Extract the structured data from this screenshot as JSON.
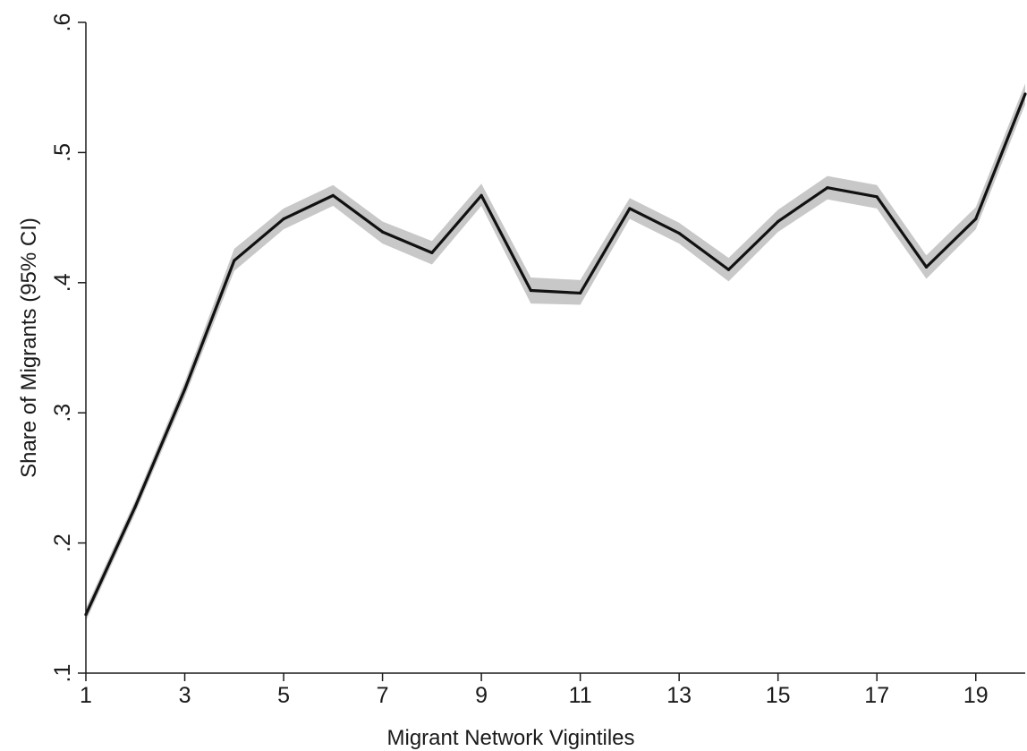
{
  "chart_data": {
    "type": "line",
    "title": "",
    "xlabel": "Migrant Network Vigintiles",
    "ylabel": "Share of Migrants (95% CI)",
    "xlim": [
      1,
      20
    ],
    "ylim": [
      0.1,
      0.6
    ],
    "x_ticks": [
      1,
      3,
      5,
      7,
      9,
      11,
      13,
      15,
      17,
      19
    ],
    "x_tick_labels": [
      "1",
      "3",
      "5",
      "7",
      "9",
      "11",
      "13",
      "15",
      "17",
      "19"
    ],
    "y_ticks": [
      0.1,
      0.2,
      0.3,
      0.4,
      0.5,
      0.6
    ],
    "y_tick_labels": [
      ".1",
      ".2",
      ".3",
      ".4",
      ".5",
      ".6"
    ],
    "grid": false,
    "legend": "none",
    "line_color": "#111111",
    "ci_color": "#c8c8c8",
    "series": [
      {
        "x": [
          1,
          2,
          3,
          4,
          5,
          6,
          7,
          8,
          9,
          10,
          11,
          12,
          13,
          14,
          15,
          16,
          17,
          18,
          19,
          20
        ],
        "values": [
          0.145,
          0.228,
          0.318,
          0.417,
          0.449,
          0.467,
          0.439,
          0.423,
          0.467,
          0.394,
          0.392,
          0.457,
          0.438,
          0.41,
          0.447,
          0.473,
          0.466,
          0.412,
          0.449,
          0.545
        ],
        "ci_lower": [
          0.14,
          0.223,
          0.312,
          0.409,
          0.441,
          0.459,
          0.43,
          0.414,
          0.459,
          0.384,
          0.383,
          0.449,
          0.43,
          0.401,
          0.439,
          0.464,
          0.457,
          0.403,
          0.441,
          0.537
        ],
        "ci_upper": [
          0.15,
          0.233,
          0.324,
          0.426,
          0.457,
          0.475,
          0.447,
          0.432,
          0.476,
          0.404,
          0.402,
          0.465,
          0.446,
          0.419,
          0.456,
          0.482,
          0.475,
          0.421,
          0.458,
          0.553
        ]
      }
    ]
  }
}
